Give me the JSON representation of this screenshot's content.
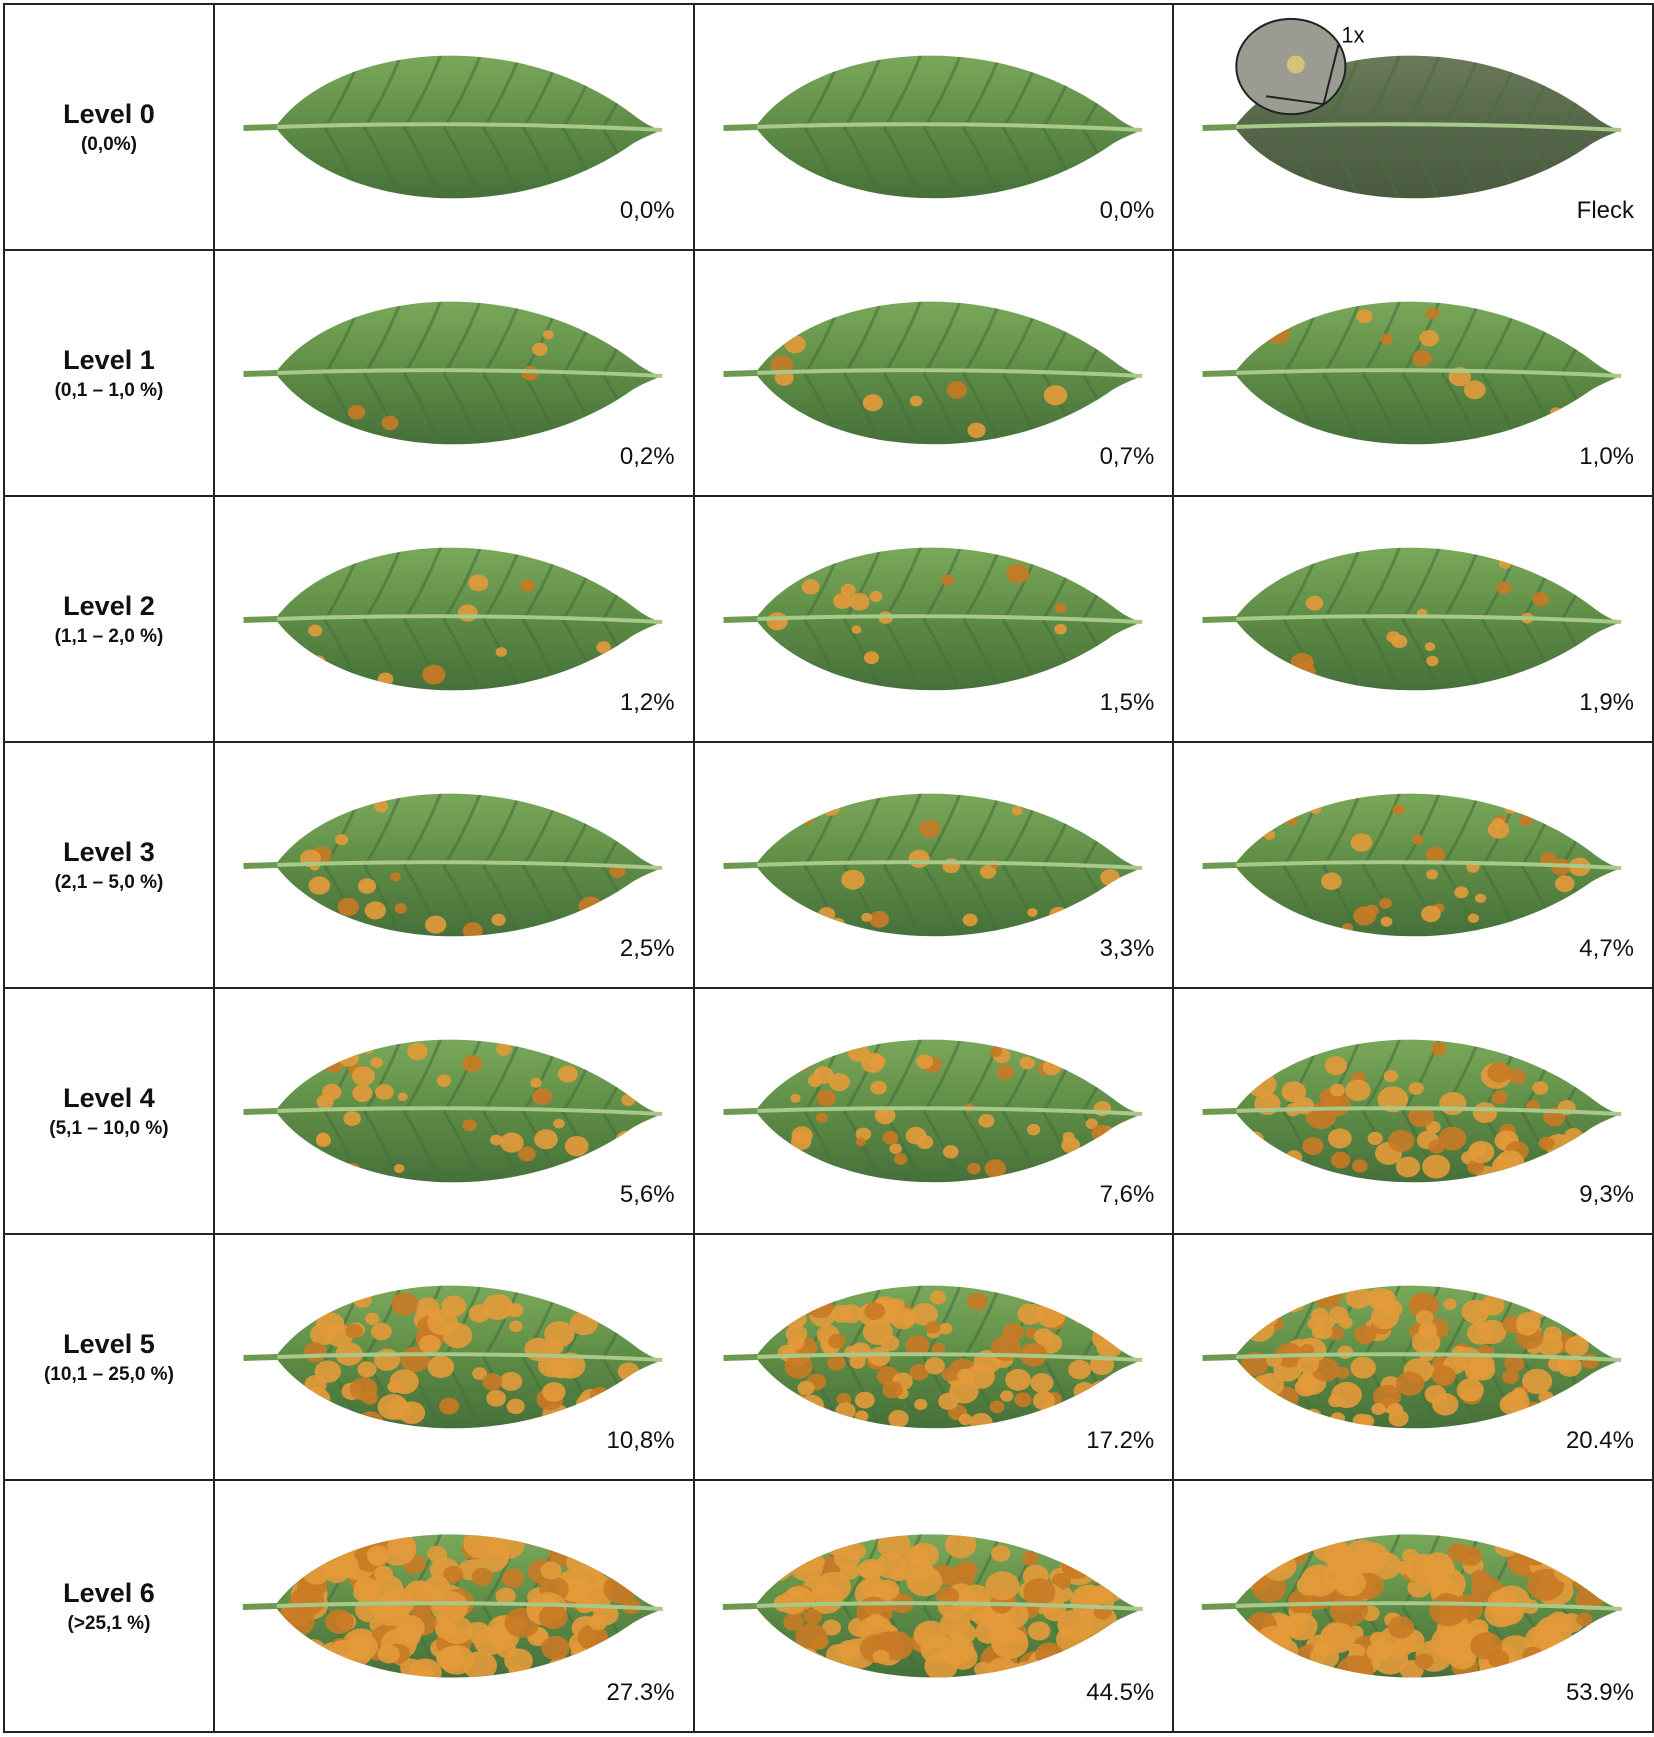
{
  "levels": [
    {
      "label": "Level 0",
      "range": "(0,0%)",
      "leaves": [
        {
          "value": "0,0%",
          "severity": 0
        },
        {
          "value": "0,0%",
          "severity": 0
        },
        {
          "value": "Fleck",
          "severity": 0,
          "inset_label": "1x"
        }
      ]
    },
    {
      "label": "Level 1",
      "range": "(0,1 – 1,0 %)",
      "leaves": [
        {
          "value": "0,2%",
          "severity": 0.2
        },
        {
          "value": "0,7%",
          "severity": 0.7
        },
        {
          "value": "1,0%",
          "severity": 1.0
        }
      ]
    },
    {
      "label": "Level 2",
      "range": "(1,1 – 2,0 %)",
      "leaves": [
        {
          "value": "1,2%",
          "severity": 1.2
        },
        {
          "value": "1,5%",
          "severity": 1.5
        },
        {
          "value": "1,9%",
          "severity": 1.9
        }
      ]
    },
    {
      "label": "Level 3",
      "range": "(2,1 – 5,0 %)",
      "leaves": [
        {
          "value": "2,5%",
          "severity": 2.5
        },
        {
          "value": "3,3%",
          "severity": 3.3
        },
        {
          "value": "4,7%",
          "severity": 4.7
        }
      ]
    },
    {
      "label": "Level 4",
      "range": "(5,1 – 10,0 %)",
      "leaves": [
        {
          "value": "5,6%",
          "severity": 5.6
        },
        {
          "value": "7,6%",
          "severity": 7.6
        },
        {
          "value": "9,3%",
          "severity": 9.3
        }
      ]
    },
    {
      "label": "Level 5",
      "range": "(10,1 – 25,0 %)",
      "leaves": [
        {
          "value": "10,8%",
          "severity": 10.8
        },
        {
          "value": "17.2%",
          "severity": 17.2
        },
        {
          "value": "20.4%",
          "severity": 20.4
        }
      ]
    },
    {
      "label": "Level 6",
      "range": "(>25,1 %)",
      "leaves": [
        {
          "value": "27.3%",
          "severity": 27.3
        },
        {
          "value": "44.5%",
          "severity": 44.5
        },
        {
          "value": "53.9%",
          "severity": 53.9
        }
      ]
    }
  ],
  "colors": {
    "leaf_light": "#7aa85a",
    "leaf_mid": "#5d8c45",
    "leaf_dark": "#46703a",
    "vein": "#a8c98a",
    "lesion": "#e39a3a",
    "lesion_dark": "#c97a25",
    "border": "#222222"
  }
}
